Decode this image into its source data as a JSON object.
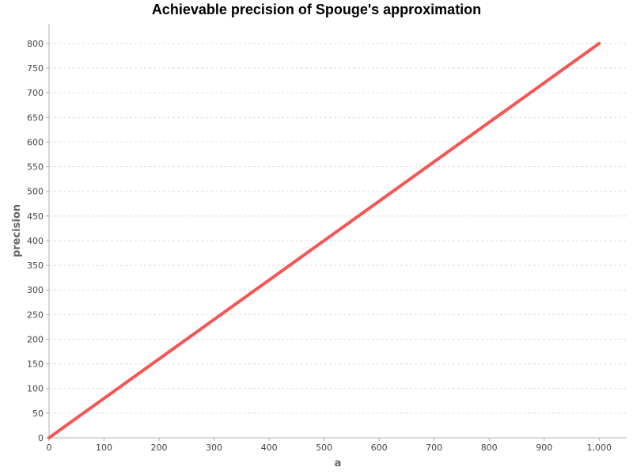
{
  "chart_data": {
    "type": "line",
    "title": "Achievable precision of Spouge's approximation",
    "xlabel": "a",
    "ylabel": "precision",
    "xlim": [
      0,
      1050
    ],
    "ylim": [
      0,
      840
    ],
    "x_ticks": [
      0,
      100,
      200,
      300,
      400,
      500,
      600,
      700,
      800,
      900,
      1000
    ],
    "x_tick_labels": [
      "0",
      "100",
      "200",
      "300",
      "400",
      "500",
      "600",
      "700",
      "800",
      "900",
      "1,000"
    ],
    "y_ticks": [
      0,
      50,
      100,
      150,
      200,
      250,
      300,
      350,
      400,
      450,
      500,
      550,
      600,
      650,
      700,
      750,
      800
    ],
    "y_tick_labels": [
      "0",
      "50",
      "100",
      "150",
      "200",
      "250",
      "300",
      "350",
      "400",
      "450",
      "500",
      "550",
      "600",
      "650",
      "700",
      "750",
      "800"
    ],
    "grid": true,
    "series": [
      {
        "color": "#f55555",
        "x": [
          0,
          1000
        ],
        "y": [
          0,
          800
        ]
      }
    ]
  }
}
